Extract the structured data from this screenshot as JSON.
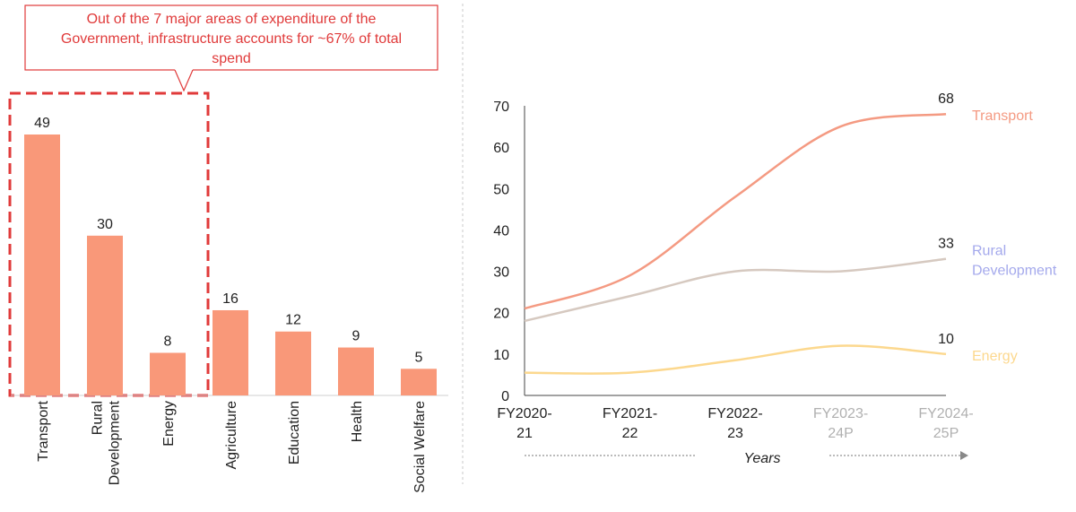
{
  "callout": {
    "lines": [
      "Out of the 7 major areas of expenditure of the",
      "Government, infrastructure accounts for ~67% of total",
      "spend"
    ]
  },
  "colors": {
    "bar": "#f99879",
    "callout": "#e03a3a",
    "transport": "#f49a82",
    "rural": "#d6c9c0",
    "rural_label": "#a4a9ec",
    "energy": "#fcd88e",
    "axis": "#444444",
    "faded_tick": "#b0b0b0"
  },
  "chart_data": [
    {
      "type": "bar",
      "categories": [
        "Transport",
        "Rural Development",
        "Energy",
        "Agriculture",
        "Education",
        "Health",
        "Social Welfare"
      ],
      "category_lines": [
        [
          "Transport"
        ],
        [
          "Rural",
          "Development"
        ],
        [
          "Energy"
        ],
        [
          "Agriculture"
        ],
        [
          "Education"
        ],
        [
          "Health"
        ],
        [
          "Social Welfare"
        ]
      ],
      "values": [
        49,
        30,
        8,
        16,
        12,
        9,
        5
      ],
      "data_labels": [
        "49",
        "30",
        "8",
        "16",
        "12",
        "9",
        "5"
      ],
      "highlight": [
        "Transport",
        "Rural Development",
        "Energy"
      ]
    },
    {
      "type": "line",
      "x": [
        "FY2020-21",
        "FY2021-22",
        "FY2022-23",
        "FY2023-24P",
        "FY2024-25P"
      ],
      "x_tick_lines": [
        [
          "FY2020-",
          "21"
        ],
        [
          "FY2021-",
          "22"
        ],
        [
          "FY2022-",
          "23"
        ],
        [
          "FY2023-",
          "24P"
        ],
        [
          "FY2024-",
          "25P"
        ]
      ],
      "x_tick_faded": [
        false,
        false,
        false,
        true,
        true
      ],
      "xlabel": "Years",
      "ylim": [
        0,
        70
      ],
      "yticks": [
        0,
        10,
        20,
        30,
        40,
        50,
        60,
        70
      ],
      "series": [
        {
          "name": "Transport",
          "name_lines": [
            "Transport"
          ],
          "values": [
            21,
            29,
            48,
            65,
            68
          ],
          "end_label": "68",
          "color_key": "transport",
          "label_color_key": "transport"
        },
        {
          "name": "Rural Development",
          "name_lines": [
            "Rural",
            "Development"
          ],
          "values": [
            18,
            24,
            30,
            30,
            33
          ],
          "end_label": "33",
          "color_key": "rural",
          "label_color_key": "rural_label"
        },
        {
          "name": "Energy",
          "name_lines": [
            "Energy"
          ],
          "values": [
            5.5,
            5.5,
            8.5,
            12,
            10
          ],
          "end_label": "10",
          "color_key": "energy",
          "label_color_key": "energy"
        }
      ]
    }
  ]
}
